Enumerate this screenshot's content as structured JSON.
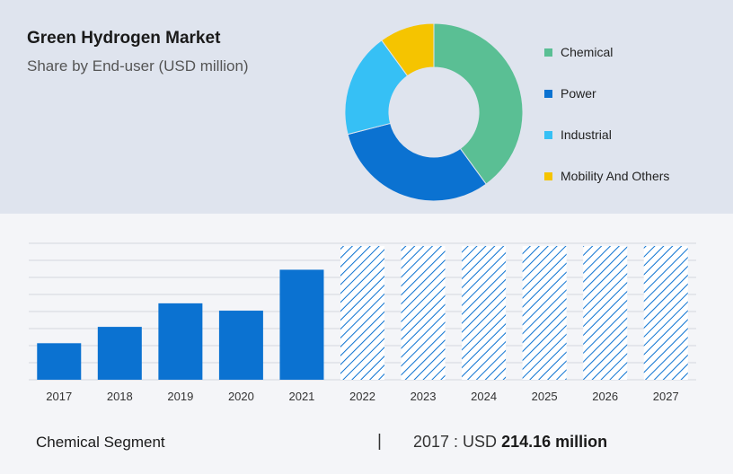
{
  "header": {
    "title": "Green Hydrogen Market",
    "subtitle": "Share by End-user (USD million)"
  },
  "chart_data": [
    {
      "type": "pie",
      "variant": "donut",
      "categories": [
        "Chemical",
        "Power",
        "Industrial",
        "Mobility And Others"
      ],
      "values": [
        40,
        31,
        19,
        10
      ],
      "colors": [
        "#5abf94",
        "#0b72d1",
        "#36c0f5",
        "#f5c400"
      ],
      "legend": "right"
    },
    {
      "type": "bar",
      "categories": [
        "2017",
        "2018",
        "2019",
        "2020",
        "2021",
        "2022",
        "2023",
        "2024",
        "2025",
        "2026",
        "2027"
      ],
      "values": [
        214.16,
        310,
        448,
        405,
        645,
        null,
        null,
        null,
        null,
        null,
        null
      ],
      "forecast_categories": [
        "2022",
        "2023",
        "2024",
        "2025",
        "2026",
        "2027"
      ],
      "ylim": [
        0,
        800
      ],
      "grid": true,
      "bar_color": "#0b72d1",
      "forecast_pattern": "diagonal-hatch"
    }
  ],
  "footer": {
    "segment_label": "Chemical Segment",
    "separator": "|",
    "year_prefix": "2017 : USD ",
    "value": "214.16 million"
  }
}
